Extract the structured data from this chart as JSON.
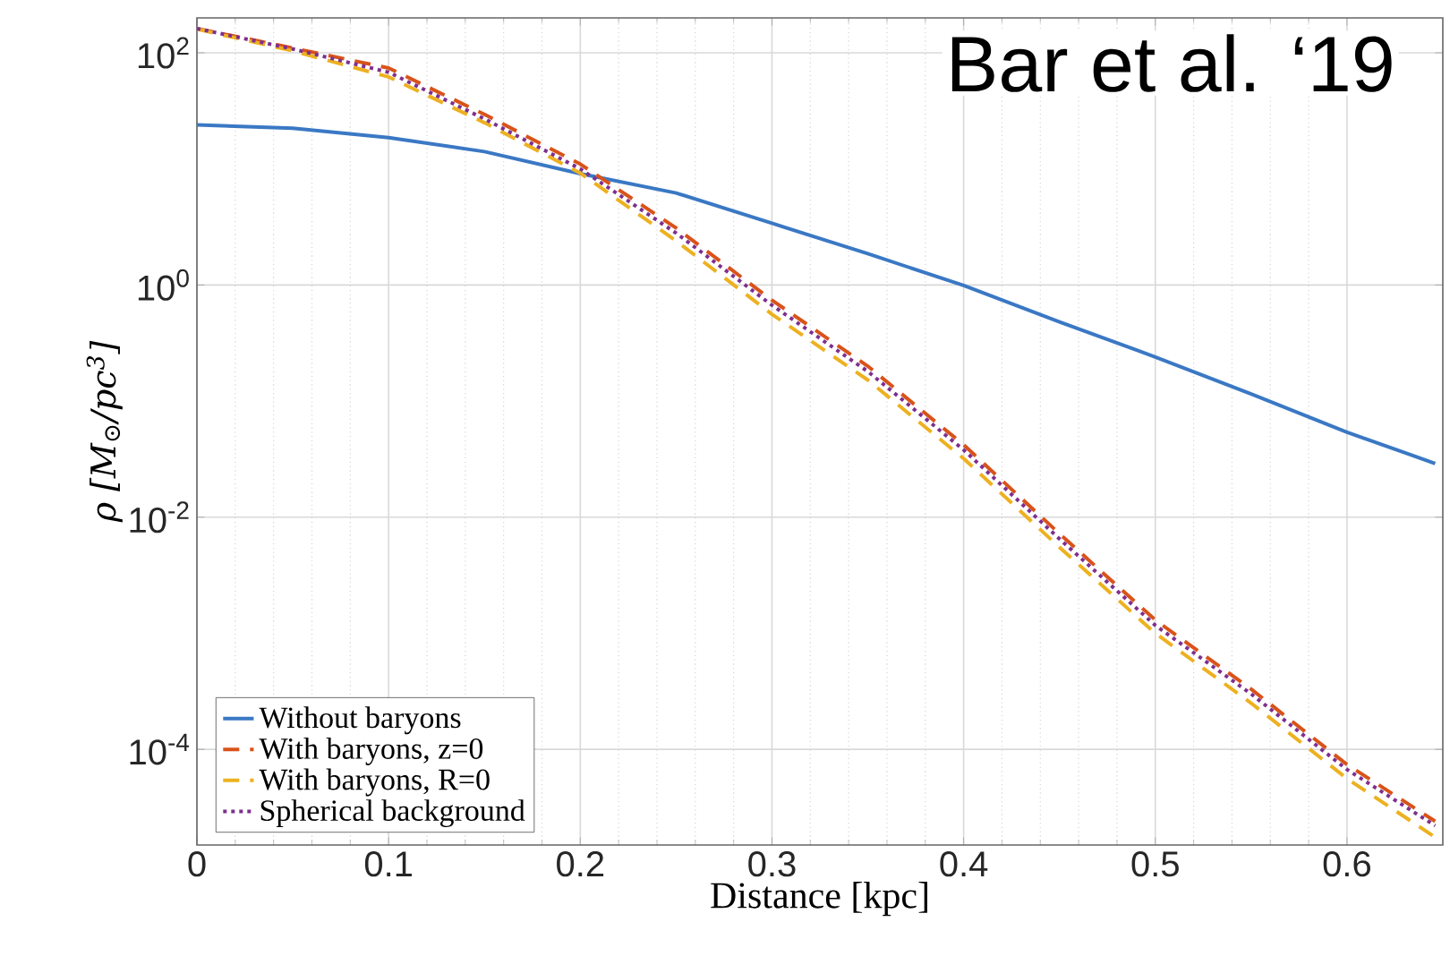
{
  "chart_data": {
    "type": "line",
    "xlabel": "Distance [kpc]",
    "ylabel": "ρ [M$_{⊙}$/pc$^{3}$]",
    "annotations": [
      "Bar et al. ‘19"
    ],
    "x": [
      0,
      0.05,
      0.1,
      0.15,
      0.2,
      0.25,
      0.3,
      0.35,
      0.4,
      0.45,
      0.5,
      0.55,
      0.6,
      0.646
    ],
    "series": [
      {
        "name": "Without baryons",
        "color": "#3a78c4",
        "line_style": "solid",
        "values": [
          24,
          22.4,
          18.6,
          14.1,
          9.1,
          6.2,
          3.4,
          1.86,
          0.99,
          0.48,
          0.24,
          0.115,
          0.054,
          0.029
        ]
      },
      {
        "name": "With baryons, z=0",
        "color": "#d95319",
        "line_style": "dashed",
        "values": [
          162,
          110,
          74,
          29.5,
          11,
          3.1,
          0.74,
          0.2,
          0.042,
          0.0072,
          0.0013,
          0.00033,
          7.4e-05,
          2.4e-05
        ]
      },
      {
        "name": "With baryons, R=0",
        "color": "#edb120",
        "line_style": "dashed",
        "values": [
          160,
          104,
          62,
          25,
          9.2,
          2.4,
          0.56,
          0.152,
          0.032,
          0.0055,
          0.001,
          0.00025,
          5.6e-05,
          1.75e-05
        ]
      },
      {
        "name": "Spherical background",
        "color": "#7e2f8e",
        "line_style": "dotted",
        "values": [
          162,
          108,
          68,
          27,
          10,
          2.8,
          0.67,
          0.18,
          0.038,
          0.0065,
          0.00117,
          0.0003,
          6.7e-05,
          2.2e-05
        ]
      }
    ],
    "xlim": [
      0,
      0.65
    ],
    "xticks": [
      0,
      0.1,
      0.2,
      0.3,
      0.4,
      0.5,
      0.6
    ],
    "ylim": [
      1.5e-05,
      200
    ],
    "yticks": [
      {
        "value": 0.0001,
        "label": "10$^{-4}$"
      },
      {
        "value": 0.01,
        "label": "10$^{-2}$"
      },
      {
        "value": 1,
        "label": "10$^{0}$"
      },
      {
        "value": 100,
        "label": "10$^{2}$"
      }
    ],
    "log": "y",
    "grid": true,
    "legend": "bottom left",
    "marker": "none"
  }
}
